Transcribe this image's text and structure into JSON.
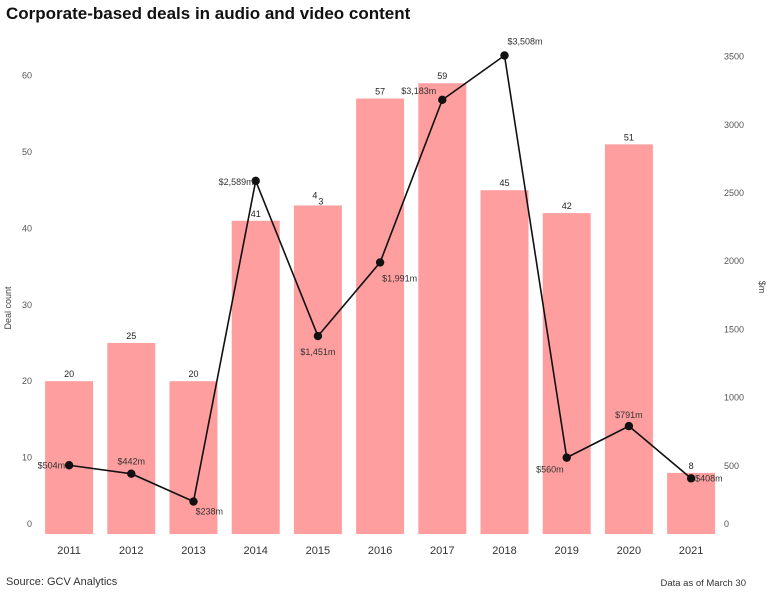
{
  "chart_data": {
    "type": "bar+line",
    "title": "Corporate-based deals in audio and video content",
    "categories": [
      "2011",
      "2012",
      "2013",
      "2014",
      "2015",
      "2016",
      "2017",
      "2018",
      "2019",
      "2020",
      "2021"
    ],
    "series": [
      {
        "name": "Deal count",
        "type": "bar",
        "axis": "left",
        "color": "#ff9e9e",
        "values": [
          20,
          25,
          20,
          41,
          43,
          57,
          59,
          45,
          42,
          51,
          8
        ],
        "labels": [
          "20",
          "25",
          "20",
          "41",
          "4\n3",
          "57",
          "59",
          "45",
          "42",
          "51",
          "8"
        ]
      },
      {
        "name": "$m",
        "type": "line",
        "axis": "right",
        "color": "#111111",
        "values": [
          504,
          442,
          238,
          2589,
          1451,
          1991,
          3183,
          3508,
          560,
          791,
          408
        ],
        "labels": [
          "$504m",
          "$442m",
          "$238m",
          "$2,589m",
          "$1,451m",
          "$1,991m",
          "$3,183m",
          "$3,508m",
          "$560m",
          "$791m",
          "$408m"
        ]
      }
    ],
    "y_left": {
      "label": "Deal count",
      "ticks": [
        0,
        10,
        20,
        30,
        40,
        50,
        60
      ],
      "range": [
        0,
        68
      ]
    },
    "y_right": {
      "label": "$m",
      "ticks": [
        0,
        500,
        1000,
        1500,
        2000,
        2500,
        3000,
        3500
      ],
      "range": [
        0,
        3800
      ]
    },
    "grid": false,
    "source": "Source: GCV Analytics",
    "note": "Data as of March 30"
  }
}
